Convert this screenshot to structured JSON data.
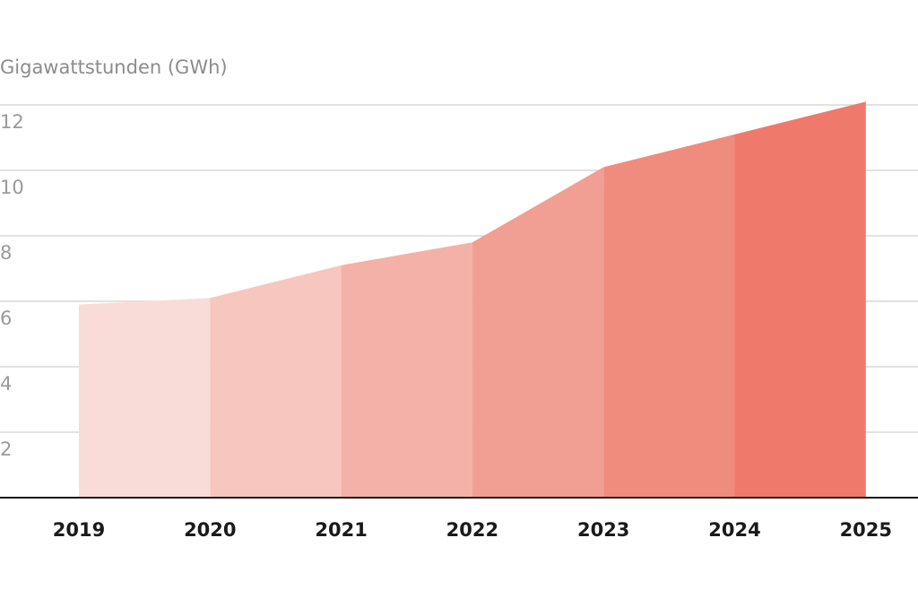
{
  "chart_data": {
    "type": "area",
    "title": "",
    "ylabel": "Gigawattstunden (GWh)",
    "xlabel": "",
    "categories": [
      "2019",
      "2020",
      "2021",
      "2022",
      "2023",
      "2024",
      "2025"
    ],
    "values": [
      5.9,
      6.1,
      7.1,
      7.8,
      10.1,
      11.1,
      12.1
    ],
    "ylim": [
      0,
      12
    ],
    "yticks": [
      {
        "value": 12,
        "label": "12"
      },
      {
        "value": 10,
        "label": "10"
      },
      {
        "value": 8,
        "label": "8"
      },
      {
        "value": 6,
        "label": "6"
      },
      {
        "value": 4,
        "label": "4"
      },
      {
        "value": 2,
        "label": "2"
      }
    ],
    "grid": true,
    "segment_colors": [
      "#f9dcd7",
      "#f6c6bf",
      "#f4b1a7",
      "#f29f93",
      "#f08c7e",
      "#ef7a6b",
      "#ef7a6b"
    ]
  }
}
